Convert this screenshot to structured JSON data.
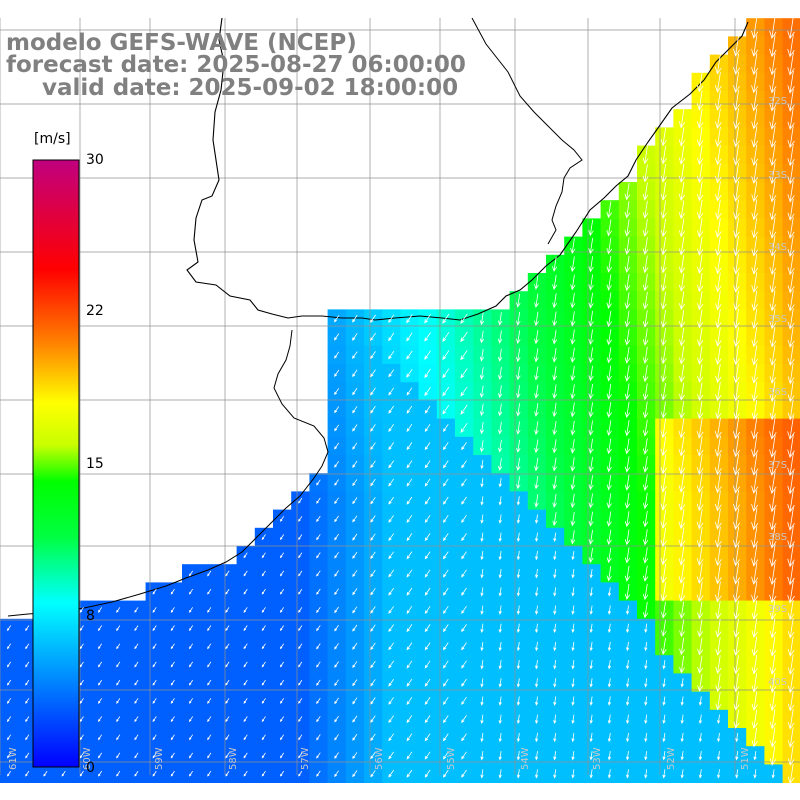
{
  "title": {
    "line1": "modelo GEFS-WAVE (NCEP)",
    "line2": "forecast date: 2025-08-27 06:00:00",
    "line3": "valid date: 2025-09-02 18:00:00"
  },
  "colorbar": {
    "unit": "[m/s]",
    "ticks": [
      "30",
      "22",
      "15",
      "8",
      "0"
    ],
    "min": 0,
    "max": 30
  },
  "lat_labels": [
    "32S",
    "33S",
    "34S",
    "35S",
    "36S",
    "37S",
    "38S",
    "39S",
    "40S"
  ],
  "lon_labels": [
    "61W",
    "60W",
    "59W",
    "58W",
    "57W",
    "56W",
    "55W",
    "54W",
    "53W",
    "52W",
    "51W"
  ],
  "colors": {
    "land": "#ffffff",
    "coast": "#000000",
    "grid": "#909090",
    "arrow": "#ffffff"
  }
}
